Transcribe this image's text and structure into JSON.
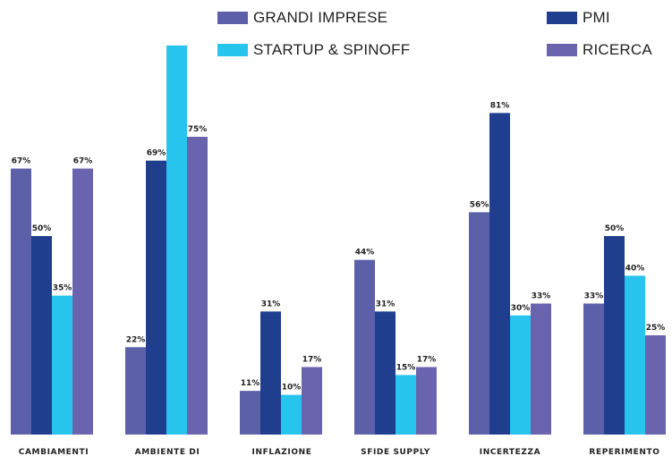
{
  "chart_data": {
    "type": "bar",
    "categories": [
      "CAMBIAMENTI",
      "AMBIENTE DI",
      "INFLAZIONE",
      "SFIDE SUPPLY",
      "INCERTEZZA",
      "REPERIMENTO"
    ],
    "series": [
      {
        "name": "GRANDI IMPRESE",
        "color": "#5b60a8",
        "values": [
          67,
          22,
          11,
          44,
          56,
          33
        ],
        "labels": [
          "67%",
          "22%",
          "11%",
          "44%",
          "56%",
          "33%"
        ]
      },
      {
        "name": "PMI",
        "color": "#1f3f8e",
        "values": [
          50,
          69,
          31,
          31,
          81,
          50
        ],
        "labels": [
          "50%",
          "69%",
          "31%",
          "31%",
          "81%",
          "50%"
        ]
      },
      {
        "name": "STARTUP & SPINOFF",
        "color": "#27c4ee",
        "values": [
          35,
          98,
          10,
          15,
          30,
          40
        ],
        "labels": [
          "35%",
          "",
          "10%",
          "15%",
          "30%",
          "40%"
        ]
      },
      {
        "name": "RICERCA",
        "color": "#6a63ad",
        "values": [
          67,
          75,
          17,
          17,
          33,
          25
        ],
        "labels": [
          "67%",
          "75%",
          "17%",
          "17%",
          "33%",
          "25%"
        ]
      }
    ],
    "legend_position": "top-right",
    "grid": false,
    "ylim": [
      0,
      100
    ]
  }
}
